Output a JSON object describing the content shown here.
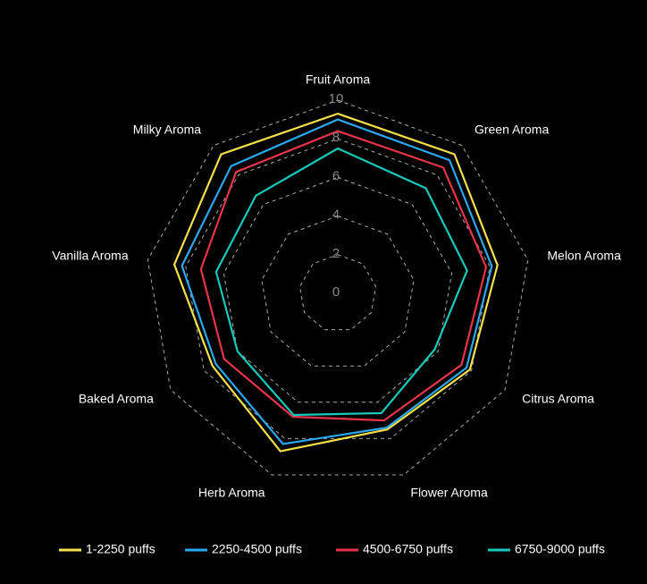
{
  "chart_data": {
    "type": "radar",
    "categories": [
      "Fruit Aroma",
      "Green Aroma",
      "Melon Aroma",
      "Citrus Aroma",
      "Flower Aroma",
      "Herb Aroma",
      "Baked Aroma",
      "Vanilla Aroma",
      "Milky Aroma"
    ],
    "series": [
      {
        "name": "1-2250 puffs",
        "color": "#f5e04a",
        "values": [
          9.3,
          9.4,
          8.4,
          7.9,
          7.5,
          8.7,
          7.5,
          8.6,
          9.4
        ]
      },
      {
        "name": "2250-4500 puffs",
        "color": "#2aa8f0",
        "values": [
          9.0,
          9.0,
          8.1,
          7.7,
          7.4,
          8.3,
          7.3,
          8.2,
          8.6
        ]
      },
      {
        "name": "4500-6750 puffs",
        "color": "#e8334a",
        "values": [
          8.4,
          8.5,
          7.8,
          7.4,
          7.0,
          6.8,
          6.8,
          7.2,
          8.2
        ]
      },
      {
        "name": "6750-9000 puffs",
        "color": "#17c9bd",
        "values": [
          7.5,
          7.1,
          6.8,
          5.8,
          6.6,
          6.7,
          6.0,
          6.4,
          6.6
        ]
      }
    ],
    "ylim": [
      0,
      10
    ],
    "yticks": [
      0,
      2,
      4,
      6,
      8,
      10
    ],
    "grid": true,
    "legend": "bottom"
  }
}
